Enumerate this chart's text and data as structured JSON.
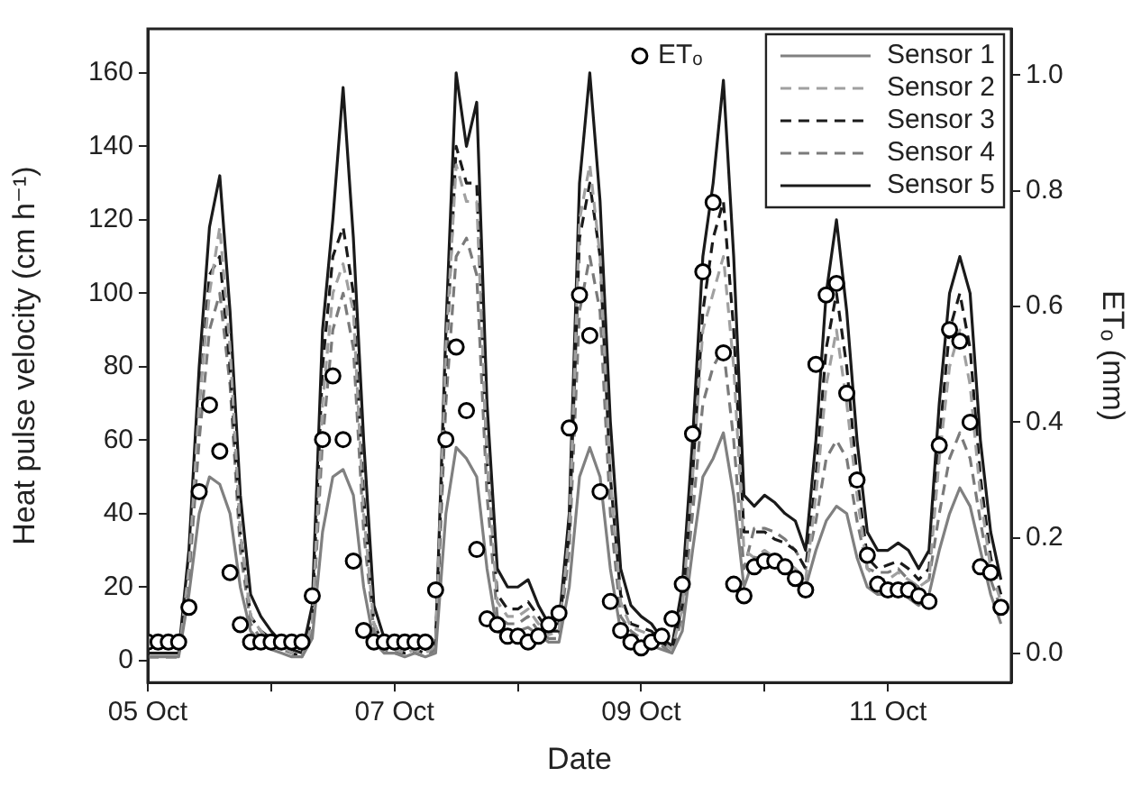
{
  "chart_data": {
    "type": "line",
    "xlabel": "Date",
    "ylabel": "Heat pulse velocity (cm h⁻¹)",
    "y2label": "ETₒ (mm)",
    "x": [
      "--10-05T00:00",
      "--10-05T02:00",
      "--10-05T04:00",
      "--10-05T06:00",
      "--10-05T08:00",
      "--10-05T10:00",
      "--10-05T12:00",
      "--10-05T14:00",
      "--10-05T16:00",
      "--10-05T18:00",
      "--10-05T20:00",
      "--10-05T22:00",
      "--10-06T00:00",
      "--10-06T02:00",
      "--10-06T04:00",
      "--10-06T06:00",
      "--10-06T08:00",
      "--10-06T10:00",
      "--10-06T12:00",
      "--10-06T14:00",
      "--10-06T16:00",
      "--10-06T18:00",
      "--10-06T20:00",
      "--10-06T22:00",
      "--10-07T00:00",
      "--10-07T02:00",
      "--10-07T04:00",
      "--10-07T06:00",
      "--10-07T08:00",
      "--10-07T10:00",
      "--10-07T12:00",
      "--10-07T14:00",
      "--10-07T16:00",
      "--10-07T18:00",
      "--10-07T20:00",
      "--10-07T22:00",
      "--10-08T00:00",
      "--10-08T02:00",
      "--10-08T04:00",
      "--10-08T06:00",
      "--10-08T08:00",
      "--10-08T10:00",
      "--10-08T12:00",
      "--10-08T14:00",
      "--10-08T16:00",
      "--10-08T18:00",
      "--10-08T20:00",
      "--10-08T22:00",
      "--10-09T00:00",
      "--10-09T02:00",
      "--10-09T04:00",
      "--10-09T06:00",
      "--10-09T08:00",
      "--10-09T10:00",
      "--10-09T12:00",
      "--10-09T14:00",
      "--10-09T16:00",
      "--10-09T18:00",
      "--10-09T20:00",
      "--10-09T22:00",
      "--10-10T00:00",
      "--10-10T02:00",
      "--10-10T04:00",
      "--10-10T06:00",
      "--10-10T08:00",
      "--10-10T10:00",
      "--10-10T12:00",
      "--10-10T14:00",
      "--10-10T16:00",
      "--10-10T18:00",
      "--10-10T20:00",
      "--10-10T22:00",
      "--10-11T00:00",
      "--10-11T02:00",
      "--10-11T04:00",
      "--10-11T06:00",
      "--10-11T08:00",
      "--10-11T10:00",
      "--10-11T12:00",
      "--10-11T14:00",
      "--10-11T16:00",
      "--10-11T18:00",
      "--10-11T20:00",
      "--10-11T22:00"
    ],
    "series": [
      {
        "name": "Sensor 1",
        "color": "#808080",
        "line_style": "solid",
        "values": [
          1,
          1,
          1,
          1,
          18,
          40,
          50,
          48,
          40,
          20,
          8,
          5,
          3,
          2,
          1,
          1,
          6,
          35,
          50,
          52,
          45,
          20,
          5,
          2,
          2,
          1,
          2,
          1,
          2,
          40,
          58,
          55,
          50,
          25,
          8,
          6,
          8,
          9,
          7,
          5,
          5,
          20,
          50,
          58,
          50,
          25,
          8,
          5,
          5,
          4,
          3,
          2,
          8,
          30,
          50,
          55,
          62,
          45,
          20,
          28,
          28,
          27,
          25,
          22,
          20,
          30,
          38,
          42,
          40,
          28,
          20,
          18,
          18,
          19,
          17,
          15,
          18,
          30,
          40,
          47,
          42,
          30,
          18,
          10
        ]
      },
      {
        "name": "Sensor 2",
        "color": "#a0a0a0",
        "line_style": "dashed",
        "values": [
          1,
          1,
          1,
          1,
          25,
          70,
          100,
          118,
          85,
          35,
          12,
          8,
          5,
          4,
          2,
          1,
          10,
          70,
          100,
          108,
          95,
          40,
          10,
          4,
          3,
          2,
          3,
          2,
          4,
          85,
          135,
          125,
          125,
          55,
          16,
          12,
          12,
          14,
          10,
          7,
          8,
          35,
          120,
          135,
          110,
          50,
          16,
          9,
          8,
          7,
          5,
          3,
          14,
          50,
          90,
          100,
          110,
          80,
          30,
          28,
          30,
          28,
          27,
          25,
          22,
          45,
          75,
          90,
          70,
          45,
          25,
          22,
          22,
          24,
          22,
          20,
          22,
          55,
          80,
          90,
          75,
          45,
          25,
          16
        ]
      },
      {
        "name": "Sensor 3",
        "color": "#1a1a1a",
        "line_style": "dashed",
        "values": [
          1,
          1,
          1,
          1,
          25,
          70,
          105,
          110,
          80,
          35,
          12,
          8,
          6,
          4,
          2,
          1,
          12,
          80,
          110,
          118,
          100,
          45,
          10,
          4,
          3,
          2,
          3,
          2,
          4,
          80,
          140,
          130,
          130,
          55,
          18,
          14,
          14,
          16,
          12,
          8,
          8,
          35,
          115,
          130,
          110,
          50,
          18,
          10,
          9,
          8,
          5,
          3,
          15,
          50,
          95,
          115,
          125,
          90,
          35,
          35,
          35,
          33,
          32,
          30,
          25,
          50,
          85,
          100,
          80,
          50,
          28,
          25,
          26,
          27,
          25,
          22,
          25,
          60,
          90,
          100,
          85,
          50,
          28,
          18
        ]
      },
      {
        "name": "Sensor 4",
        "color": "#7a7a7a",
        "line_style": "dashed",
        "values": [
          1,
          1,
          1,
          1,
          22,
          60,
          90,
          100,
          75,
          30,
          10,
          6,
          4,
          3,
          2,
          1,
          8,
          60,
          90,
          100,
          85,
          35,
          8,
          3,
          2,
          2,
          2,
          1,
          3,
          70,
          110,
          115,
          105,
          45,
          12,
          10,
          10,
          12,
          8,
          6,
          6,
          30,
          95,
          110,
          95,
          40,
          12,
          8,
          6,
          5,
          4,
          2,
          12,
          40,
          70,
          80,
          85,
          60,
          25,
          36,
          36,
          35,
          33,
          30,
          25,
          38,
          55,
          60,
          55,
          38,
          25,
          24,
          24,
          25,
          22,
          20,
          22,
          40,
          55,
          62,
          55,
          38,
          22,
          14
        ]
      },
      {
        "name": "Sensor 5",
        "color": "#1a1a1a",
        "line_style": "solid",
        "values": [
          2,
          2,
          2,
          2,
          30,
          80,
          118,
          132,
          95,
          45,
          18,
          12,
          8,
          5,
          3,
          2,
          15,
          90,
          120,
          156,
          115,
          60,
          15,
          6,
          4,
          3,
          5,
          3,
          5,
          90,
          160,
          140,
          152,
          70,
          25,
          20,
          20,
          22,
          15,
          10,
          10,
          40,
          130,
          160,
          125,
          65,
          25,
          15,
          12,
          10,
          6,
          4,
          20,
          60,
          110,
          130,
          158,
          110,
          45,
          42,
          45,
          43,
          40,
          38,
          30,
          60,
          100,
          120,
          95,
          60,
          35,
          30,
          30,
          32,
          30,
          25,
          30,
          70,
          100,
          110,
          100,
          60,
          35,
          22
        ]
      },
      {
        "name": "ETₒ",
        "type": "scatter",
        "axis": "y2",
        "marker": "circle",
        "color": "#000000",
        "values": [
          0.02,
          0.02,
          0.02,
          0.02,
          0.08,
          0.28,
          0.43,
          0.35,
          0.14,
          0.05,
          0.02,
          0.02,
          0.02,
          0.02,
          0.02,
          0.02,
          0.1,
          0.37,
          0.48,
          0.37,
          0.16,
          0.04,
          0.02,
          0.02,
          0.02,
          0.02,
          0.02,
          0.02,
          0.11,
          0.37,
          0.53,
          0.42,
          0.18,
          0.06,
          0.05,
          0.03,
          0.03,
          0.02,
          0.03,
          0.05,
          0.07,
          0.39,
          0.62,
          0.55,
          0.28,
          0.09,
          0.04,
          0.02,
          0.01,
          0.02,
          0.03,
          0.06,
          0.12,
          0.38,
          0.66,
          0.78,
          0.52,
          0.12,
          0.1,
          0.15,
          0.16,
          0.16,
          0.15,
          0.13,
          0.11,
          0.5,
          0.62,
          0.64,
          0.45,
          0.3,
          0.17,
          0.12,
          0.11,
          0.11,
          0.11,
          0.1,
          0.09,
          0.36,
          0.56,
          0.54,
          0.4,
          0.15,
          0.14,
          0.08
        ]
      }
    ],
    "xlim": [
      "--10-05",
      "--10-12"
    ],
    "xticks": [
      {
        "value": "--10-05",
        "label": "05 Oct"
      },
      {
        "value": "--10-06",
        "label": null
      },
      {
        "value": "--10-07",
        "label": "07 Oct"
      },
      {
        "value": "--10-08",
        "label": null
      },
      {
        "value": "--10-09",
        "label": "09 Oct"
      },
      {
        "value": "--10-10",
        "label": null
      },
      {
        "value": "--10-11",
        "label": "11 Oct"
      }
    ],
    "ylim": [
      -6,
      172
    ],
    "yticks": [
      0,
      20,
      40,
      60,
      80,
      100,
      120,
      140,
      160
    ],
    "y2lim": [
      -0.05,
      1.08
    ],
    "y2ticks": [
      {
        "value": 0,
        "label": "0.0"
      },
      {
        "value": 0.2,
        "label": "0.2"
      },
      {
        "value": 0.4,
        "label": "0.4"
      },
      {
        "value": 0.6,
        "label": "0.6"
      },
      {
        "value": 0.8,
        "label": "0.8"
      },
      {
        "value": 1,
        "label": "1.0"
      }
    ],
    "grid": false,
    "legend": "top right"
  }
}
